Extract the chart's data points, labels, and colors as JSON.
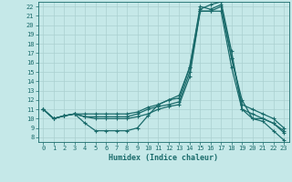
{
  "xlabel": "Humidex (Indice chaleur)",
  "xlim": [
    -0.5,
    23.5
  ],
  "ylim": [
    7.5,
    22.5
  ],
  "xticks": [
    0,
    1,
    2,
    3,
    4,
    5,
    6,
    7,
    8,
    9,
    10,
    11,
    12,
    13,
    14,
    15,
    16,
    17,
    18,
    19,
    20,
    21,
    22,
    23
  ],
  "yticks": [
    8,
    9,
    10,
    11,
    12,
    13,
    14,
    15,
    16,
    17,
    18,
    19,
    20,
    21,
    22
  ],
  "background_color": "#c5e8e8",
  "grid_color": "#aad0d0",
  "line_color": "#1a6b6b",
  "curves": [
    {
      "x": [
        0,
        1,
        2,
        3,
        4,
        5,
        6,
        7,
        8,
        9,
        10,
        11,
        12,
        13,
        14,
        15,
        16,
        17,
        18,
        19,
        20,
        21,
        22,
        23
      ],
      "y": [
        11,
        10,
        10.3,
        10.5,
        9.5,
        8.7,
        8.7,
        8.7,
        8.7,
        9.0,
        10.3,
        11.5,
        12.0,
        12.5,
        15.5,
        21.7,
        22.2,
        22.5,
        17.2,
        11.0,
        10.0,
        9.7,
        8.7,
        7.7
      ]
    },
    {
      "x": [
        0,
        1,
        2,
        3,
        4,
        5,
        6,
        7,
        8,
        9,
        10,
        11,
        12,
        13,
        14,
        15,
        16,
        17,
        18,
        19,
        20,
        21,
        22,
        23
      ],
      "y": [
        11,
        10,
        10.3,
        10.5,
        10.2,
        10.0,
        10.0,
        10.0,
        10.0,
        10.2,
        10.5,
        11.0,
        11.3,
        11.5,
        14.5,
        21.5,
        21.5,
        21.5,
        15.5,
        11.0,
        10.5,
        10.0,
        9.5,
        8.5
      ]
    },
    {
      "x": [
        0,
        1,
        2,
        3,
        4,
        5,
        6,
        7,
        8,
        9,
        10,
        11,
        12,
        13,
        14,
        15,
        16,
        17,
        18,
        19,
        20,
        21,
        22,
        23
      ],
      "y": [
        11,
        10,
        10.3,
        10.5,
        10.2,
        10.2,
        10.2,
        10.2,
        10.2,
        10.5,
        11.0,
        11.3,
        11.5,
        11.8,
        15.0,
        21.5,
        21.5,
        22.0,
        16.5,
        11.5,
        11.0,
        10.5,
        10.0,
        9.0
      ]
    },
    {
      "x": [
        0,
        1,
        2,
        3,
        4,
        5,
        6,
        7,
        8,
        9,
        10,
        11,
        12,
        13,
        14,
        15,
        16,
        17,
        18,
        19,
        20,
        21,
        22,
        23
      ],
      "y": [
        11,
        10,
        10.3,
        10.5,
        10.5,
        10.5,
        10.5,
        10.5,
        10.5,
        10.7,
        11.2,
        11.5,
        12.0,
        12.2,
        15.5,
        22.0,
        21.7,
        22.2,
        16.5,
        12.0,
        10.0,
        10.0,
        9.5,
        8.7
      ]
    }
  ]
}
